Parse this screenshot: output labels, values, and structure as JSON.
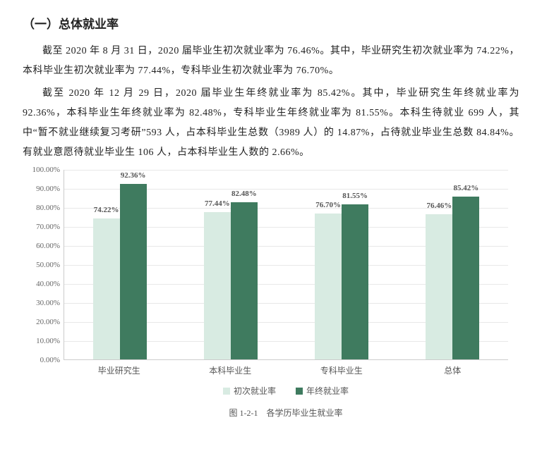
{
  "heading": "（一）总体就业率",
  "paragraphs": [
    "截至 2020 年 8 月 31 日，2020 届毕业生初次就业率为 76.46%。其中，毕业研究生初次就业率为 74.22%，本科毕业生初次就业率为 77.44%，专科毕业生初次就业率为 76.70%。",
    "截至 2020 年 12 月 29 日，2020 届毕业生年终就业率为 85.42%。其中，毕业研究生年终就业率为 92.36%，本科毕业生年终就业率为 82.48%，专科毕业生年终就业率为 81.55%。本科生待就业 699 人，其中“暂不就业继续复习考研”593 人，占本科毕业生总数（3989 人）的 14.87%，占待就业毕业生总数 84.84%。有就业意愿待就业毕业生 106 人，占本科毕业生人数的 2.66%。"
  ],
  "chart": {
    "type": "bar",
    "ymax": 100,
    "ytick_step": 10,
    "ytick_suffix": ".00%",
    "categories": [
      "毕业研究生",
      "本科毕业生",
      "专科毕业生",
      "总体"
    ],
    "series": [
      {
        "name": "初次就业率",
        "color": "#d8ebe2",
        "values": [
          74.22,
          77.44,
          76.7,
          76.46
        ]
      },
      {
        "name": "年终就业率",
        "color": "#3f7b5f",
        "values": [
          92.36,
          82.48,
          81.55,
          85.42
        ]
      }
    ],
    "value_suffix": "%",
    "grid_color": "#e8e8e8",
    "text_color": "#555555"
  },
  "legend_labels": [
    "初次就业率",
    "年终就业率"
  ],
  "caption": "图 1-2-1　各学历毕业生就业率"
}
